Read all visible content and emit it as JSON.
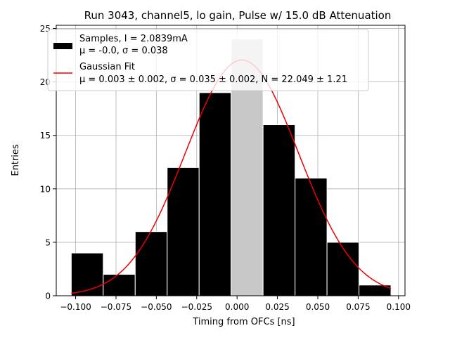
{
  "chart_data": {
    "type": "bar",
    "title": "Run 3043, channel5, lo gain, Pulse w/ 15.0 dB Attenuation",
    "xlabel": "Timing from OFCs [ns]",
    "ylabel": "Entries",
    "xlim": [
      -0.112,
      0.104
    ],
    "ylim": [
      0,
      25.3
    ],
    "xticks": [
      -0.1,
      -0.075,
      -0.05,
      -0.025,
      0.0,
      0.025,
      0.05,
      0.075,
      0.1
    ],
    "xtick_labels": [
      "−0.100",
      "−0.075",
      "−0.050",
      "−0.025",
      "0.000",
      "0.025",
      "0.050",
      "0.075",
      "0.100"
    ],
    "yticks": [
      0,
      5,
      10,
      15,
      20,
      25
    ],
    "ytick_labels": [
      "0",
      "5",
      "10",
      "15",
      "20",
      "25"
    ],
    "grid": true,
    "legend_position": "top-left",
    "histogram": {
      "bin_edges": [
        -0.1027,
        -0.0829,
        -0.0631,
        -0.0433,
        -0.0235,
        -0.0037,
        0.0161,
        0.0359,
        0.0557,
        0.0755,
        0.0953
      ],
      "counts": [
        4,
        2,
        6,
        12,
        19,
        24,
        16,
        11,
        5,
        1
      ],
      "highlight_bin_index": 5,
      "color": "#000000",
      "highlight_color": "#c8c8c8",
      "edge_color": "#ffffff"
    },
    "fit": {
      "type": "gaussian",
      "mu": 0.003,
      "sigma": 0.035,
      "N": 22.049,
      "x_range": [
        -0.1027,
        0.0953
      ],
      "color": "#ee0000"
    },
    "legend": [
      {
        "kind": "patch",
        "line1": "Samples, I = 2.0839mA",
        "line2": "μ = -0.0, σ = 0.038"
      },
      {
        "kind": "line",
        "line1": "Gaussian Fit",
        "line2": "μ = 0.003 ± 0.002, σ = 0.035 ± 0.002, N = 22.049 ± 1.21"
      }
    ]
  }
}
